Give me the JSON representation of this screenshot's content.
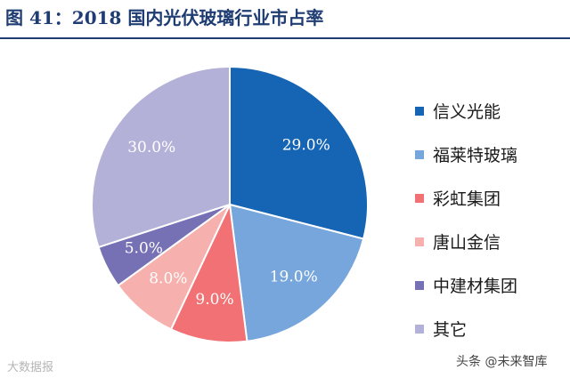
{
  "title": "图 41：2018 国内光伏玻璃行业市占率",
  "colors": {
    "title": "#1f3c73",
    "slice_label": "#ffffff"
  },
  "chart_data": {
    "type": "pie",
    "title": "图 41：2018 国内光伏玻璃行业市占率",
    "slices": [
      {
        "name": "信义光能",
        "value": 29.0,
        "label": "29.0%",
        "color": "#1565b4"
      },
      {
        "name": "福莱特玻璃",
        "value": 19.0,
        "label": "19.0%",
        "color": "#76a6dc"
      },
      {
        "name": "彩虹集团",
        "value": 9.0,
        "label": "9.0%",
        "color": "#f17174"
      },
      {
        "name": "唐山金信",
        "value": 8.0,
        "label": "8.0%",
        "color": "#f6b1ae"
      },
      {
        "name": "中建材集团",
        "value": 5.0,
        "label": "5.0%",
        "color": "#7670b4"
      },
      {
        "name": "其它",
        "value": 30.0,
        "label": "30.0%",
        "color": "#b4b1d8"
      }
    ],
    "legend_position": "right",
    "start_angle": "12 o'clock",
    "direction": "clockwise"
  },
  "watermarks": {
    "left": "大数据报",
    "right": "头条 @未来智库"
  }
}
